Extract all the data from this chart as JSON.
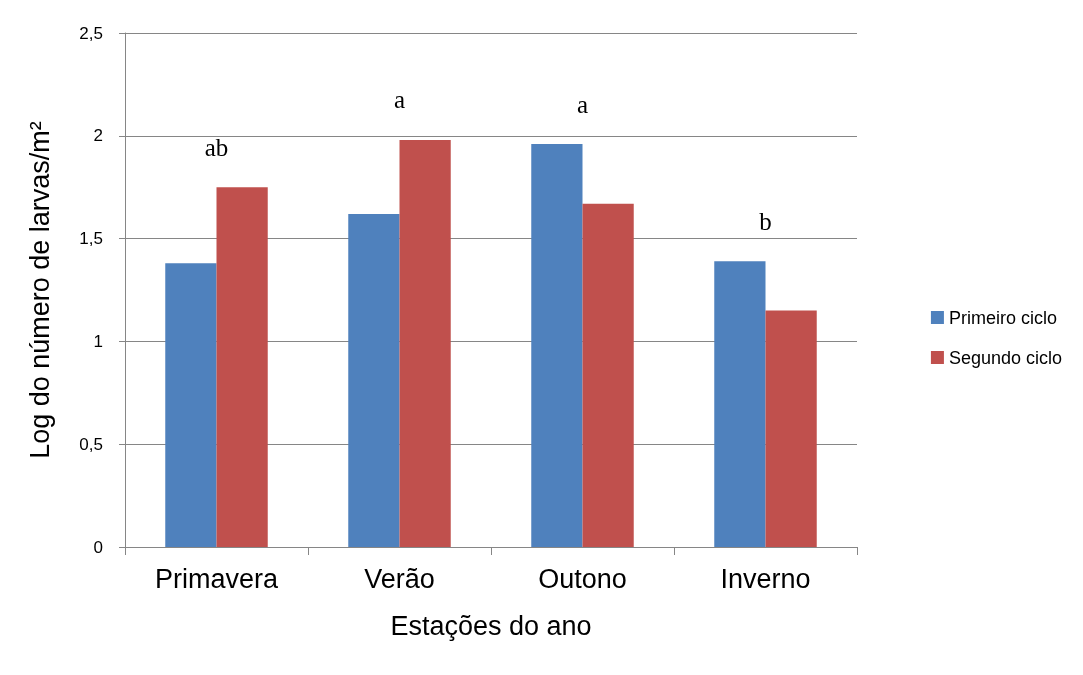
{
  "chart_data": {
    "type": "bar",
    "xlabel": "Estações do ano",
    "ylabel": "Log do número de larvas/m²",
    "categories": [
      "Primavera",
      "Verão",
      "Outono",
      "Inverno"
    ],
    "series": [
      {
        "name": "Primeiro ciclo",
        "color": "#4f81bd",
        "values": [
          1.38,
          1.62,
          1.96,
          1.39
        ]
      },
      {
        "name": "Segundo ciclo",
        "color": "#c0504d",
        "values": [
          1.75,
          1.98,
          1.67,
          1.15
        ]
      }
    ],
    "ylim": [
      0,
      2.5
    ],
    "yticks": [
      0,
      {
        "value": 0.5,
        "label": "0,5"
      },
      1,
      {
        "value": 1.5,
        "label": "1,5"
      },
      2,
      {
        "value": 2.5,
        "label": "2,5"
      }
    ],
    "annotations": [
      "ab",
      "a",
      "a",
      "b"
    ],
    "grid": "y",
    "legend": "right"
  }
}
